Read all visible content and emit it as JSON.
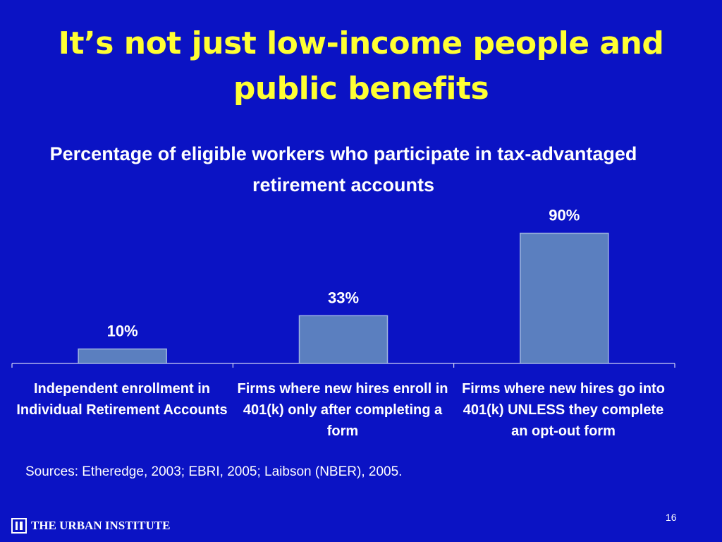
{
  "slide": {
    "title": "It’s not just low-income people and public benefits",
    "sources": "Sources: Etheredge, 2003; EBRI, 2005; Laibson (NBER), 2005.",
    "page_number": "16",
    "footer_org": "THE URBAN INSTITUTE"
  },
  "colors": {
    "background": "#0b13c4",
    "title": "#ffff33",
    "bar_fill": "#5b7fbf",
    "bar_stroke": "#9fb4e0"
  },
  "chart_data": {
    "type": "bar",
    "title": "Percentage of eligible workers who participate in tax-advantaged retirement accounts",
    "categories": [
      "Independent enrollment in Individual Retirement Accounts",
      "Firms where new hires enroll in 401(k) only after completing a form",
      "Firms where new hires go into 401(k) UNLESS they complete an opt-out form"
    ],
    "values": [
      10,
      33,
      90
    ],
    "data_labels": [
      "10%",
      "33%",
      "90%"
    ],
    "ylim": [
      0,
      100
    ],
    "grid": false,
    "xlabel": "",
    "ylabel": ""
  }
}
